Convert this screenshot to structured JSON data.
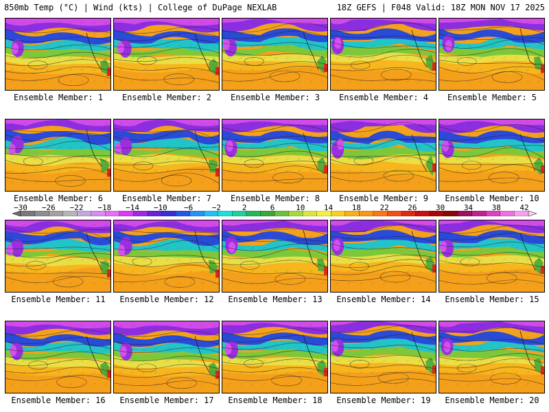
{
  "header": {
    "left": "850mb Temp (°C) | Wind (kts) | College of DuPage NEXLAB",
    "right": "18Z GEFS | F048 Valid: 18Z MON NOV 17 2025"
  },
  "colorbar": {
    "labels": [
      "−30",
      "−26",
      "−22",
      "−18",
      "−14",
      "−10",
      "−6",
      "−2",
      "2",
      "6",
      "10",
      "14",
      "18",
      "22",
      "26",
      "30",
      "34",
      "38",
      "42"
    ],
    "colors": [
      "#7a7a7a",
      "#8e8e8e",
      "#a2a2a2",
      "#b6b6b6",
      "#c7a7e0",
      "#d78cf0",
      "#e56ff5",
      "#d63ef0",
      "#9b2be0",
      "#6a22d8",
      "#3a2fd0",
      "#2658e8",
      "#2a8ff0",
      "#22c0f0",
      "#1ee0d8",
      "#1ed0a0",
      "#22b860",
      "#3aa83a",
      "#6cc040",
      "#a8d840",
      "#d8e840",
      "#f8f040",
      "#f8d020",
      "#f8b018",
      "#f89818",
      "#f87818",
      "#f05018",
      "#e02818",
      "#c81010",
      "#a80808",
      "#880808",
      "#a01060",
      "#c02090",
      "#e040c0",
      "#f070e0",
      "#f8a0f0"
    ]
  },
  "members": [
    "Ensemble Member: 1",
    "Ensemble Member: 2",
    "Ensemble Member: 3",
    "Ensemble Member: 4",
    "Ensemble Member: 5",
    "Ensemble Member: 6",
    "Ensemble Member: 7",
    "Ensemble Member: 8",
    "Ensemble Member: 9",
    "Ensemble Member: 10",
    "Ensemble Member: 11",
    "Ensemble Member: 12",
    "Ensemble Member: 13",
    "Ensemble Member: 14",
    "Ensemble Member: 15",
    "Ensemble Member: 16",
    "Ensemble Member: 17",
    "Ensemble Member: 18",
    "Ensemble Member: 19",
    "Ensemble Member: 20"
  ]
}
